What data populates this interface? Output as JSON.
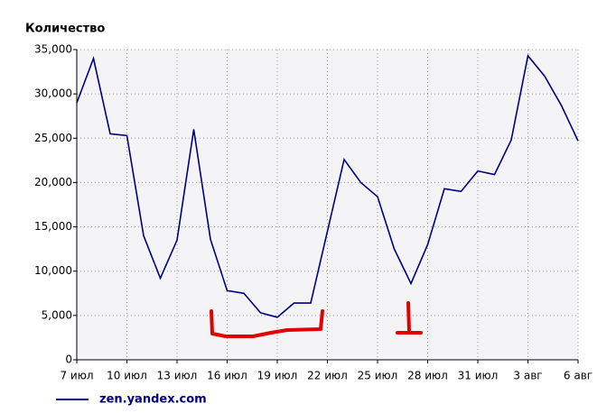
{
  "chart_data": {
    "type": "line",
    "y_label": "Количество",
    "categories": [
      "7 июл",
      null,
      null,
      "10 июл",
      null,
      null,
      "13 июл",
      null,
      null,
      "16 июл",
      null,
      null,
      "19 июл",
      null,
      null,
      "22 июл",
      null,
      null,
      "25 июл",
      null,
      null,
      "28 июл",
      null,
      null,
      "31 июл",
      null,
      null,
      "3 авг",
      null,
      null,
      "6 авг"
    ],
    "series": [
      {
        "name": "zen.yandex.com",
        "color": "#000080",
        "values": [
          29000,
          34000,
          25500,
          25300,
          14000,
          9200,
          13500,
          26000,
          13600,
          7800,
          7500,
          5300,
          4800,
          6400,
          6400,
          14500,
          22600,
          20000,
          18400,
          12500,
          8600,
          13000,
          19300,
          19000,
          21300,
          20900,
          24800,
          34300,
          32000,
          28700,
          24700
        ]
      }
    ],
    "ylim": [
      0,
      35000
    ],
    "yticks": [
      0,
      {
        "value": 5000,
        "label": "5,000"
      },
      {
        "value": 10000,
        "label": "10,000"
      },
      {
        "value": 15000,
        "label": "15,000"
      },
      {
        "value": 20000,
        "label": "20,000"
      },
      {
        "value": 25000,
        "label": "25,000"
      },
      {
        "value": 30000,
        "label": "30,000"
      },
      {
        "value": 35000,
        "label": "35,000"
      }
    ],
    "grid": true
  }
}
